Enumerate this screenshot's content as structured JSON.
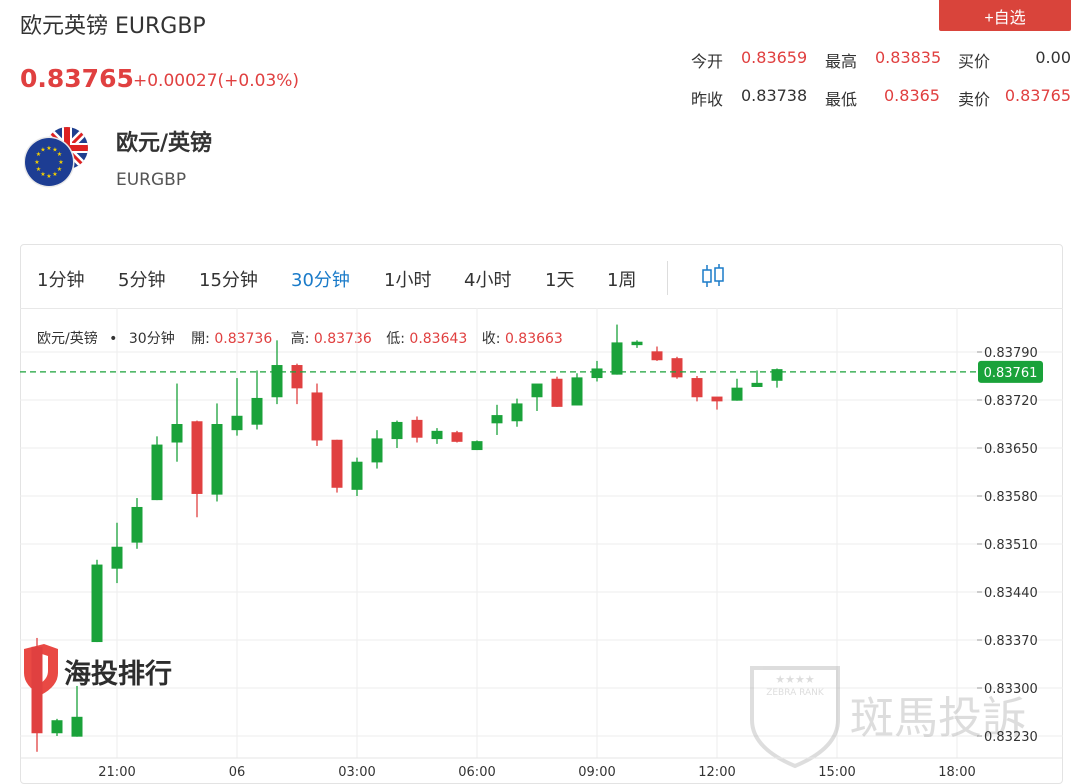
{
  "header": {
    "title": "欧元英镑 EURGBP",
    "price": "0.83765",
    "change": "+0.00027(+0.03%)",
    "add_label": "+自选"
  },
  "stats": [
    {
      "label": "今开",
      "value": "0.83659",
      "color": "#e04040"
    },
    {
      "label": "最高",
      "value": "0.83835",
      "color": "#e04040"
    },
    {
      "label": "买价",
      "value": "0.00",
      "color": "#333333"
    },
    {
      "label": "昨收",
      "value": "0.83738",
      "color": "#333333"
    },
    {
      "label": "最低",
      "value": "0.8365",
      "color": "#e04040"
    },
    {
      "label": "卖价",
      "value": "0.83765",
      "color": "#e04040"
    }
  ],
  "pair": {
    "name": "欧元/英镑",
    "code": "EURGBP",
    "flag_icon": "eu-uk-flag-icon"
  },
  "tabs": [
    {
      "label": "1分钟"
    },
    {
      "label": "5分钟"
    },
    {
      "label": "15分钟"
    },
    {
      "label": "30分钟",
      "active": true
    },
    {
      "label": "1小时"
    },
    {
      "label": "4小时"
    },
    {
      "label": "1天"
    },
    {
      "label": "1周"
    }
  ],
  "legend": {
    "pair": "欧元/英镑",
    "dot": "•",
    "period": "30分钟",
    "open_label": "開:",
    "open": "0.83736",
    "high_label": "高:",
    "high": "0.83736",
    "low_label": "低:",
    "low": "0.83643",
    "close_label": "收:",
    "close": "0.83663"
  },
  "watermarks": {
    "left_text": "海投排行",
    "right_text": "斑馬投訴",
    "right_badge": "ZEBRA RANK"
  },
  "colors": {
    "up": "#1aa23a",
    "down": "#e04040",
    "accent": "#1a7bc9",
    "button": "#d9443b"
  },
  "chart_data": {
    "type": "candlestick",
    "current_price": "0.83761",
    "y_ticks": [
      "0.83790",
      "0.83720",
      "0.83650",
      "0.83580",
      "0.83510",
      "0.83440",
      "0.83370",
      "0.83300",
      "0.83230"
    ],
    "x_ticks": [
      "21:00",
      "06",
      "03:00",
      "06:00",
      "09:00",
      "12:00",
      "15:00",
      "18:00"
    ],
    "candles": [
      {
        "o": 0.8336,
        "h": 0.83373,
        "l": 0.83207,
        "c": 0.83234
      },
      {
        "o": 0.83234,
        "h": 0.83255,
        "l": 0.8323,
        "c": 0.83253
      },
      {
        "o": 0.83229,
        "h": 0.83303,
        "l": 0.83229,
        "c": 0.83258
      },
      {
        "o": 0.83367,
        "h": 0.83487,
        "l": 0.83367,
        "c": 0.8348
      },
      {
        "o": 0.83474,
        "h": 0.83541,
        "l": 0.83453,
        "c": 0.83506
      },
      {
        "o": 0.83512,
        "h": 0.83577,
        "l": 0.83503,
        "c": 0.83564
      },
      {
        "o": 0.83574,
        "h": 0.83667,
        "l": 0.83574,
        "c": 0.83655
      },
      {
        "o": 0.83658,
        "h": 0.83744,
        "l": 0.8363,
        "c": 0.83685
      },
      {
        "o": 0.83689,
        "h": 0.8369,
        "l": 0.83549,
        "c": 0.83583
      },
      {
        "o": 0.83582,
        "h": 0.83715,
        "l": 0.83572,
        "c": 0.83685
      },
      {
        "o": 0.83676,
        "h": 0.83752,
        "l": 0.83668,
        "c": 0.83697
      },
      {
        "o": 0.83684,
        "h": 0.83763,
        "l": 0.83677,
        "c": 0.83723
      },
      {
        "o": 0.83724,
        "h": 0.83807,
        "l": 0.83714,
        "c": 0.83771
      },
      {
        "o": 0.83771,
        "h": 0.83773,
        "l": 0.83714,
        "c": 0.83737
      },
      {
        "o": 0.83731,
        "h": 0.83744,
        "l": 0.83653,
        "c": 0.83661
      },
      {
        "o": 0.83662,
        "h": 0.83662,
        "l": 0.83585,
        "c": 0.83592
      },
      {
        "o": 0.83589,
        "h": 0.83636,
        "l": 0.8358,
        "c": 0.8363
      },
      {
        "o": 0.83629,
        "h": 0.83676,
        "l": 0.8362,
        "c": 0.83664
      },
      {
        "o": 0.83663,
        "h": 0.8369,
        "l": 0.8365,
        "c": 0.83688
      },
      {
        "o": 0.83691,
        "h": 0.83696,
        "l": 0.83658,
        "c": 0.83665
      },
      {
        "o": 0.83663,
        "h": 0.83679,
        "l": 0.83656,
        "c": 0.83675
      },
      {
        "o": 0.83673,
        "h": 0.83675,
        "l": 0.83658,
        "c": 0.83659
      },
      {
        "o": 0.83647,
        "h": 0.83661,
        "l": 0.83647,
        "c": 0.8366
      },
      {
        "o": 0.83686,
        "h": 0.83713,
        "l": 0.83669,
        "c": 0.83698
      },
      {
        "o": 0.83689,
        "h": 0.83722,
        "l": 0.83681,
        "c": 0.83715
      },
      {
        "o": 0.83724,
        "h": 0.8374,
        "l": 0.83704,
        "c": 0.83744
      },
      {
        "o": 0.83751,
        "h": 0.83754,
        "l": 0.8371,
        "c": 0.8371
      },
      {
        "o": 0.83712,
        "h": 0.83759,
        "l": 0.83712,
        "c": 0.83753
      },
      {
        "o": 0.83752,
        "h": 0.83777,
        "l": 0.83747,
        "c": 0.83766
      },
      {
        "o": 0.83757,
        "h": 0.8383,
        "l": 0.83757,
        "c": 0.83804
      },
      {
        "o": 0.838,
        "h": 0.83807,
        "l": 0.83796,
        "c": 0.83805
      },
      {
        "o": 0.83791,
        "h": 0.83798,
        "l": 0.83777,
        "c": 0.83778
      },
      {
        "o": 0.83781,
        "h": 0.83783,
        "l": 0.83751,
        "c": 0.83753
      },
      {
        "o": 0.83752,
        "h": 0.83755,
        "l": 0.83718,
        "c": 0.83724
      },
      {
        "o": 0.83725,
        "h": 0.83724,
        "l": 0.83706,
        "c": 0.83718
      },
      {
        "o": 0.83719,
        "h": 0.83751,
        "l": 0.83719,
        "c": 0.83738
      },
      {
        "o": 0.83739,
        "h": 0.83763,
        "l": 0.83739,
        "c": 0.83745
      },
      {
        "o": 0.83748,
        "h": 0.83766,
        "l": 0.83738,
        "c": 0.83765
      }
    ]
  }
}
